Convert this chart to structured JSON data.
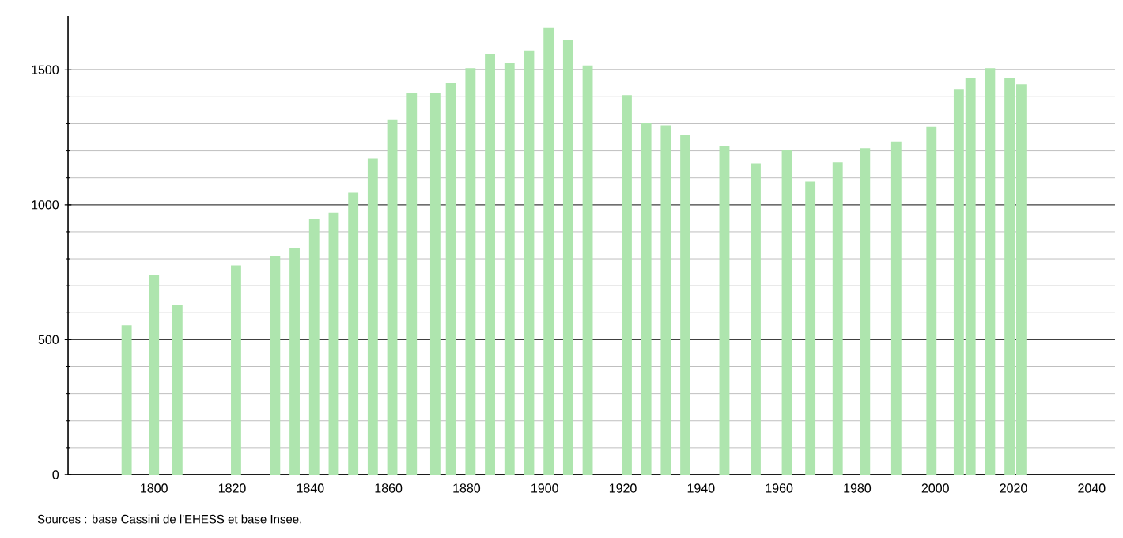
{
  "chart_data": {
    "type": "bar",
    "color": "#aee5ae",
    "x": [
      1793,
      1800,
      1806,
      1821,
      1831,
      1836,
      1841,
      1846,
      1851,
      1856,
      1861,
      1866,
      1872,
      1876,
      1881,
      1886,
      1891,
      1896,
      1901,
      1906,
      1911,
      1921,
      1926,
      1931,
      1936,
      1946,
      1954,
      1962,
      1968,
      1975,
      1982,
      1990,
      1999,
      2006,
      2009,
      2014,
      2019,
      2022
    ],
    "values": [
      553,
      741,
      629,
      775,
      810,
      841,
      947,
      971,
      1045,
      1171,
      1314,
      1416,
      1416,
      1451,
      1506,
      1559,
      1524,
      1572,
      1657,
      1612,
      1516,
      1406,
      1304,
      1294,
      1259,
      1216,
      1153,
      1204,
      1086,
      1157,
      1210,
      1235,
      1290,
      1427,
      1470,
      1506,
      1470,
      1447
    ],
    "xlim": [
      1778,
      2046
    ],
    "ylim": [
      0,
      1700
    ],
    "xticks": [
      1800,
      1820,
      1840,
      1860,
      1880,
      1900,
      1920,
      1940,
      1960,
      1980,
      2000,
      2020,
      2040
    ],
    "yticks": [
      0,
      500,
      1000,
      1500
    ],
    "grid": "y",
    "annotations": [
      "Sources : base Cassini de l'EHESS et base Insee."
    ]
  }
}
